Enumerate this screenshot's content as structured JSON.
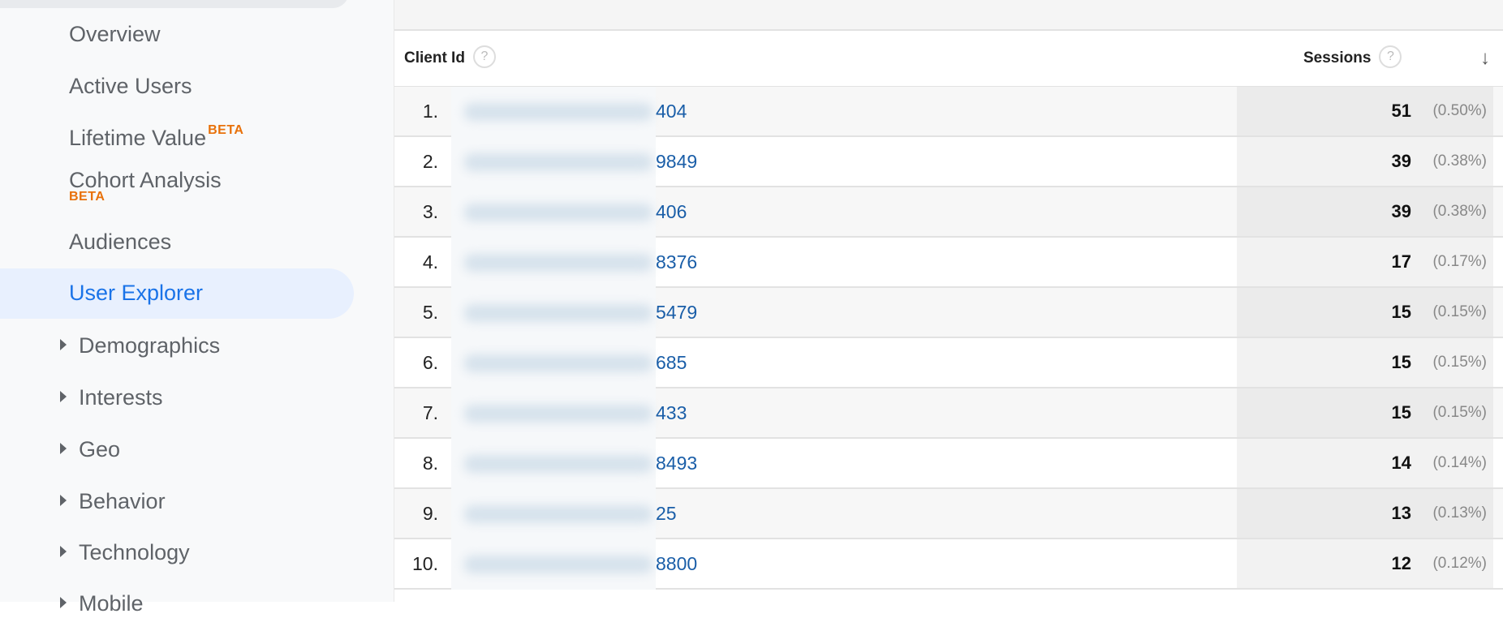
{
  "sidebar": {
    "items": [
      {
        "label": "Overview"
      },
      {
        "label": "Active Users"
      },
      {
        "label": "Lifetime Value",
        "badge": "BETA"
      },
      {
        "label": "Cohort Analysis",
        "badge": "BETA"
      },
      {
        "label": "Audiences"
      },
      {
        "label": "User Explorer",
        "active": true
      },
      {
        "label": "Demographics",
        "expandable": true
      },
      {
        "label": "Interests",
        "expandable": true
      },
      {
        "label": "Geo",
        "expandable": true
      },
      {
        "label": "Behavior",
        "expandable": true
      },
      {
        "label": "Technology",
        "expandable": true
      },
      {
        "label": "Mobile",
        "expandable": true
      }
    ],
    "active_color": "#1a73e8",
    "badge_color": "#e8710a"
  },
  "table": {
    "columns": {
      "client_id": "Client Id",
      "sessions": "Sessions",
      "help_icon": "?",
      "sort_icon": "arrow-down-icon"
    },
    "rows": [
      {
        "rank": "1.",
        "client_id": "404",
        "sessions": "51",
        "pct": "(0.50%)"
      },
      {
        "rank": "2.",
        "client_id": "9849",
        "sessions": "39",
        "pct": "(0.38%)"
      },
      {
        "rank": "3.",
        "client_id": "406",
        "sessions": "39",
        "pct": "(0.38%)"
      },
      {
        "rank": "4.",
        "client_id": "8376",
        "sessions": "17",
        "pct": "(0.17%)"
      },
      {
        "rank": "5.",
        "client_id": "5479",
        "sessions": "15",
        "pct": "(0.15%)"
      },
      {
        "rank": "6.",
        "client_id": "685",
        "sessions": "15",
        "pct": "(0.15%)"
      },
      {
        "rank": "7.",
        "client_id": "433",
        "sessions": "15",
        "pct": "(0.15%)"
      },
      {
        "rank": "8.",
        "client_id": "8493",
        "sessions": "14",
        "pct": "(0.14%)"
      },
      {
        "rank": "9.",
        "client_id": "25",
        "sessions": "13",
        "pct": "(0.13%)"
      },
      {
        "rank": "10.",
        "client_id": "8800",
        "sessions": "12",
        "pct": "(0.12%)"
      }
    ],
    "link_color": "#1a5ea8"
  }
}
